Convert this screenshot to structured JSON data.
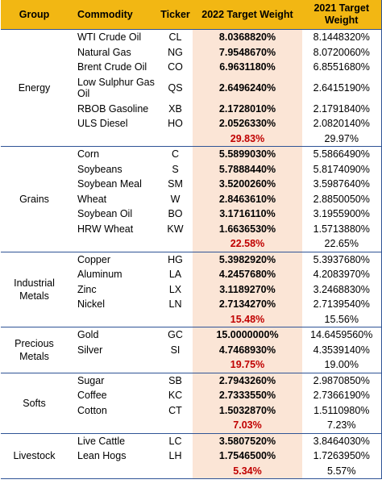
{
  "header": {
    "group": "Group",
    "commodity": "Commodity",
    "ticker": "Ticker",
    "weight_2022": "2022 Target Weight",
    "weight_2021": "2021 Target Weight"
  },
  "groups": [
    {
      "name": "Energy",
      "rows": [
        {
          "commodity": "WTI Crude Oil",
          "ticker": "CL",
          "w22": "8.0368820%",
          "w21": "8.1448320%"
        },
        {
          "commodity": "Natural Gas",
          "ticker": "NG",
          "w22": "7.9548670%",
          "w21": "8.0720060%"
        },
        {
          "commodity": "Brent Crude Oil",
          "ticker": "CO",
          "w22": "6.9631180%",
          "w21": "6.8551680%"
        },
        {
          "commodity": "Low Sulphur Gas Oil",
          "ticker": "QS",
          "w22": "2.6496240%",
          "w21": "2.6415190%"
        },
        {
          "commodity": "RBOB Gasoline",
          "ticker": "XB",
          "w22": "2.1728010%",
          "w21": "2.1791840%"
        },
        {
          "commodity": "ULS Diesel",
          "ticker": "HO",
          "w22": "2.0526330%",
          "w21": "2.0820140%"
        }
      ],
      "total_22": "29.83%",
      "total_21": "29.97%"
    },
    {
      "name": "Grains",
      "rows": [
        {
          "commodity": "Corn",
          "ticker": "C",
          "w22": "5.5899030%",
          "w21": "5.5866490%"
        },
        {
          "commodity": "Soybeans",
          "ticker": "S",
          "w22": "5.7888440%",
          "w21": "5.8174090%"
        },
        {
          "commodity": "Soybean Meal",
          "ticker": "SM",
          "w22": "3.5200260%",
          "w21": "3.5987640%"
        },
        {
          "commodity": "Wheat",
          "ticker": "W",
          "w22": "2.8463610%",
          "w21": "2.8850050%"
        },
        {
          "commodity": "Soybean Oil",
          "ticker": "BO",
          "w22": "3.1716110%",
          "w21": "3.1955900%"
        },
        {
          "commodity": "HRW Wheat",
          "ticker": "KW",
          "w22": "1.6636530%",
          "w21": "1.5713880%"
        }
      ],
      "total_22": "22.58%",
      "total_21": "22.65%"
    },
    {
      "name": "Industrial Metals",
      "rows": [
        {
          "commodity": "Copper",
          "ticker": "HG",
          "w22": "5.3982920%",
          "w21": "5.3937680%"
        },
        {
          "commodity": "Aluminum",
          "ticker": "LA",
          "w22": "4.2457680%",
          "w21": "4.2083970%"
        },
        {
          "commodity": "Zinc",
          "ticker": "LX",
          "w22": "3.1189270%",
          "w21": "3.2468830%"
        },
        {
          "commodity": "Nickel",
          "ticker": "LN",
          "w22": "2.7134270%",
          "w21": "2.7139540%"
        }
      ],
      "total_22": "15.48%",
      "total_21": "15.56%"
    },
    {
      "name": "Precious Metals",
      "rows": [
        {
          "commodity": "Gold",
          "ticker": "GC",
          "w22": "15.0000000%",
          "w21": "14.6459560%"
        },
        {
          "commodity": "Silver",
          "ticker": "SI",
          "w22": "4.7468930%",
          "w21": "4.3539140%"
        }
      ],
      "total_22": "19.75%",
      "total_21": "19.00%"
    },
    {
      "name": "Softs",
      "rows": [
        {
          "commodity": "Sugar",
          "ticker": "SB",
          "w22": "2.7943260%",
          "w21": "2.9870850%"
        },
        {
          "commodity": "Coffee",
          "ticker": "KC",
          "w22": "2.7333550%",
          "w21": "2.7366190%"
        },
        {
          "commodity": "Cotton",
          "ticker": "CT",
          "w22": "1.5032870%",
          "w21": "1.5110980%"
        }
      ],
      "total_22": "7.03%",
      "total_21": "7.23%"
    },
    {
      "name": "Livestock",
      "rows": [
        {
          "commodity": "Live Cattle",
          "ticker": "LC",
          "w22": "3.5807520%",
          "w21": "3.8464030%"
        },
        {
          "commodity": "Lean Hogs",
          "ticker": "LH",
          "w22": "1.7546500%",
          "w21": "1.7263950%"
        }
      ],
      "total_22": "5.34%",
      "total_21": "5.57%"
    }
  ],
  "colors": {
    "header_bg": "#f2b713",
    "weight_2022_bg": "#fbe5d6",
    "total_text": "#c00000",
    "divider": "#2f5496"
  }
}
